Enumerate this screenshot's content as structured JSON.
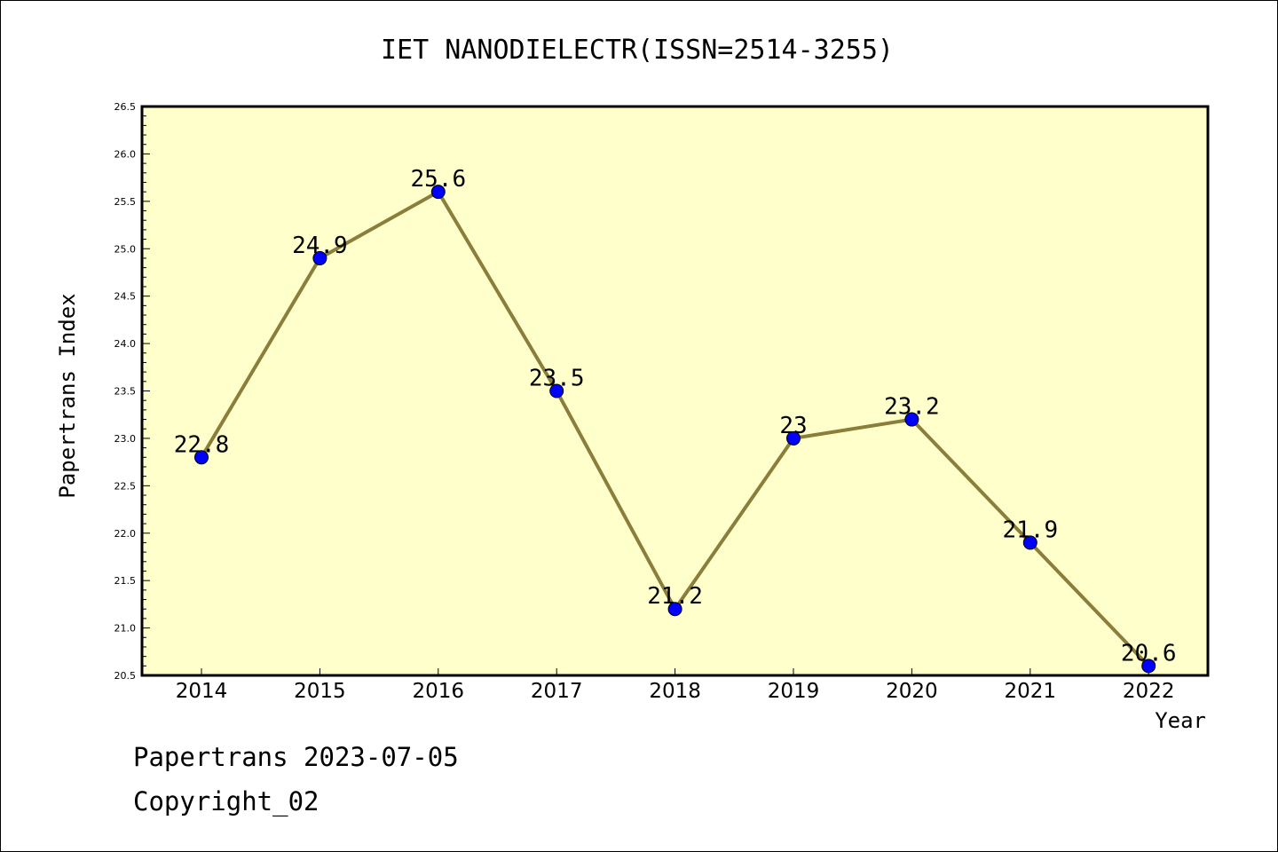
{
  "chart_data": {
    "type": "line",
    "title": "IET NANODIELECTR(ISSN=2514-3255)",
    "xlabel": "Year",
    "ylabel": "Papertrans Index",
    "categories": [
      "2014",
      "2015",
      "2016",
      "2017",
      "2018",
      "2019",
      "2020",
      "2021",
      "2022"
    ],
    "values": [
      22.8,
      24.9,
      25.6,
      23.5,
      21.2,
      23.0,
      23.2,
      21.9,
      20.6
    ],
    "data_labels": [
      "22.8",
      "24.9",
      "25.6",
      "23.5",
      "21.2",
      "23",
      "23.2",
      "21.9",
      "20.6"
    ],
    "ylim": [
      20.5,
      26.5
    ],
    "y_ticks": [
      "20.5",
      "21.0",
      "21.5",
      "22.0",
      "22.5",
      "23.0",
      "23.5",
      "24.0",
      "24.5",
      "25.0",
      "25.5",
      "26.0",
      "26.5"
    ],
    "grid": false,
    "legend": "none",
    "colors": {
      "plot_background": "#ffffcc",
      "line": "#8b7d3a",
      "marker": "#0000ff"
    }
  },
  "footer": {
    "date_line": "Papertrans 2023-07-05",
    "copyright": "Copyright_02"
  }
}
